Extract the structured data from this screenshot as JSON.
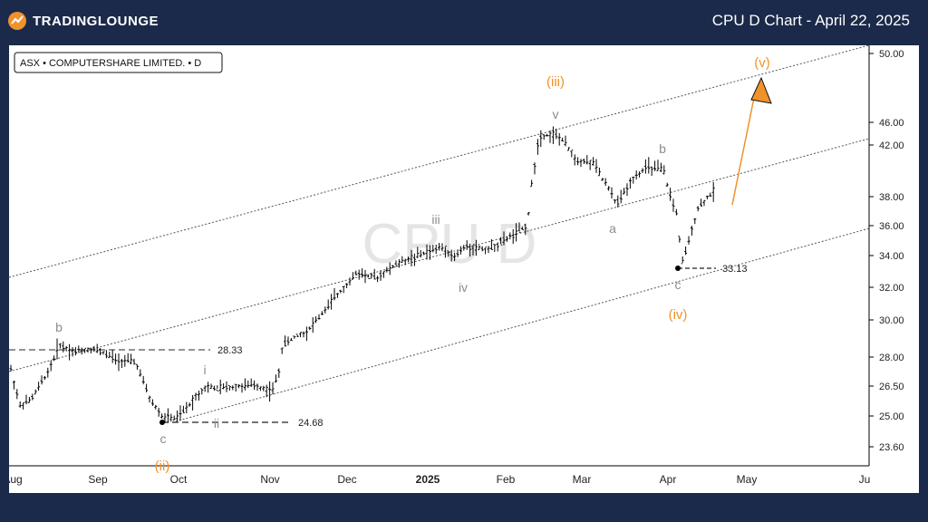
{
  "header": {
    "brand": "TRADINGLOUNGE",
    "title": "CPU D Chart - April 22, 2025"
  },
  "symbol_label": "ASX • COMPUTERSHARE LIMITED. • D",
  "watermark": "CPU D",
  "colors": {
    "background": "#1b2a4a",
    "orange": "#f0922b",
    "grey_label": "#8c8c8c",
    "candle": "#000000"
  },
  "chart_data": {
    "type": "ohlc",
    "title": "CPU D Chart - April 22, 2025",
    "y_ticks": [
      "50.00",
      "46.00",
      "42.00",
      "38.00",
      "36.00",
      "34.00",
      "32.00",
      "30.00",
      "28.00",
      "26.50",
      "25.00",
      "23.60"
    ],
    "x_ticks": [
      "Aug",
      "Sep",
      "Oct",
      "Nov",
      "Dec",
      "2025",
      "Feb",
      "Mar",
      "Apr",
      "May",
      "Ju"
    ],
    "scale": "log",
    "levels": [
      {
        "label": "28.33",
        "value": 28.33
      },
      {
        "label": "24.68",
        "value": 24.68
      },
      {
        "label": "33.13",
        "value": 33.13
      }
    ],
    "wave_labels_orange": [
      "(ii)",
      "(iii)",
      "(iv)",
      "(v)"
    ],
    "wave_labels_grey": [
      "b",
      "c",
      "i",
      "ii",
      "iii",
      "iv",
      "v",
      "a",
      "b",
      "c"
    ]
  }
}
